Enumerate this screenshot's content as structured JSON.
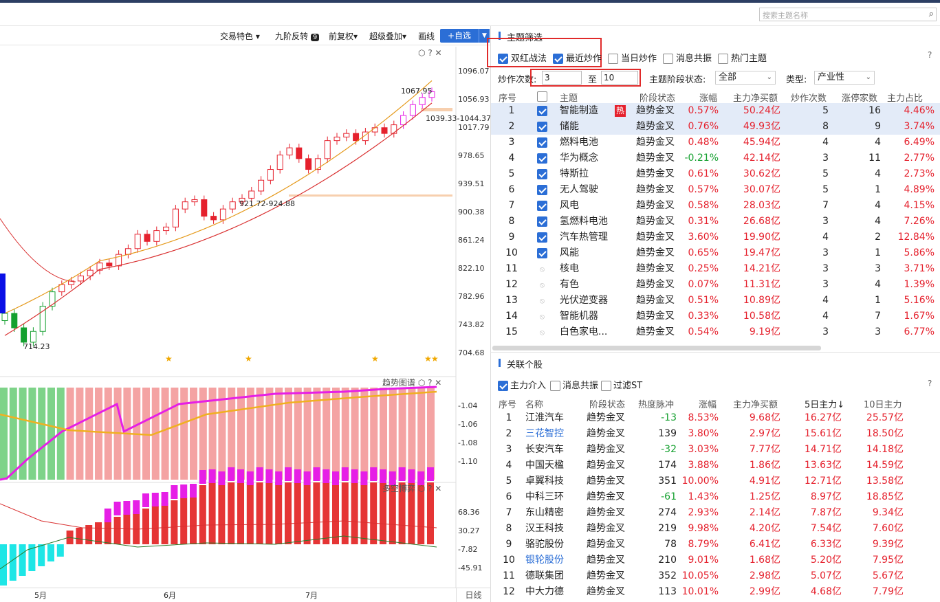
{
  "search": {
    "placeholder": "搜索主题名称",
    "icon": "search-icon"
  },
  "toolbar": {
    "items": [
      "交易特色",
      "九阶反转",
      "前复权",
      "超级叠加",
      "画线"
    ],
    "dropdown_marks": [
      "▼",
      "",
      "▼",
      "▼",
      ""
    ],
    "nine_badge": "9",
    "add_watch": "+自选"
  },
  "chart": {
    "price_ticks": [
      "1096.07",
      "1056.93",
      "1017.79",
      "978.65",
      "939.51",
      "900.38",
      "861.24",
      "822.10",
      "782.96",
      "743.82",
      "704.68"
    ],
    "annotations": {
      "high": "1067.95",
      "range1": "1039.33-1044.37",
      "range2": "921.72-924.88",
      "low": "714.23"
    },
    "trend_title": "趋势图谱",
    "trend_ticks": [
      "-1.04",
      "-1.06",
      "-1.08",
      "-1.10"
    ],
    "bull_title": "多空博弈",
    "bull_ticks": [
      "68.36",
      "30.27",
      "-7.82",
      "-45.91"
    ],
    "months": [
      "5月",
      "6月",
      "7月"
    ],
    "period": "日线"
  },
  "themes": {
    "title": "主题筛选",
    "filters": [
      {
        "label": "双红战法",
        "checked": true
      },
      {
        "label": "最近炒作",
        "checked": true
      },
      {
        "label": "当日炒作",
        "checked": false
      },
      {
        "label": "消息共振",
        "checked": false
      },
      {
        "label": "热门主题",
        "checked": false
      }
    ],
    "count_label": "炒作次数:",
    "count_from": "3",
    "count_to_label": "至",
    "count_to": "10",
    "stage_label": "主题阶段状态:",
    "stage_value": "全部",
    "type_label": "类型:",
    "type_value": "产业性",
    "columns": [
      "序号",
      "主题",
      "阶段状态",
      "涨幅",
      "主力净买额",
      "炒作次数",
      "涨停家数",
      "主力占比"
    ],
    "hot_badge": "热",
    "rows": [
      [
        "1",
        "智能制造",
        "趋势金叉",
        "0.57%",
        "50.24亿",
        "5",
        "16",
        "4.46%"
      ],
      [
        "2",
        "储能",
        "趋势金叉",
        "0.76%",
        "49.93亿",
        "8",
        "9",
        "3.74%"
      ],
      [
        "3",
        "燃料电池",
        "趋势金叉",
        "0.48%",
        "45.94亿",
        "4",
        "4",
        "6.49%"
      ],
      [
        "4",
        "华为概念",
        "趋势金叉",
        "-0.21%",
        "42.14亿",
        "3",
        "11",
        "2.77%"
      ],
      [
        "5",
        "特斯拉",
        "趋势金叉",
        "0.61%",
        "30.62亿",
        "5",
        "4",
        "2.73%"
      ],
      [
        "6",
        "无人驾驶",
        "趋势金叉",
        "0.57%",
        "30.07亿",
        "5",
        "1",
        "4.89%"
      ],
      [
        "7",
        "风电",
        "趋势金叉",
        "0.58%",
        "28.03亿",
        "7",
        "4",
        "4.15%"
      ],
      [
        "8",
        "氢燃料电池",
        "趋势金叉",
        "0.31%",
        "26.68亿",
        "3",
        "4",
        "7.26%"
      ],
      [
        "9",
        "汽车热管理",
        "趋势金叉",
        "3.60%",
        "19.90亿",
        "4",
        "2",
        "12.84%"
      ],
      [
        "10",
        "风能",
        "趋势金叉",
        "0.65%",
        "19.47亿",
        "3",
        "1",
        "5.86%"
      ],
      [
        "11",
        "核电",
        "趋势金叉",
        "0.25%",
        "14.21亿",
        "3",
        "3",
        "3.71%"
      ],
      [
        "12",
        "有色",
        "趋势金叉",
        "0.07%",
        "11.31亿",
        "3",
        "4",
        "1.39%"
      ],
      [
        "13",
        "光伏逆变器",
        "趋势金叉",
        "0.51%",
        "10.89亿",
        "4",
        "1",
        "5.16%"
      ],
      [
        "14",
        "智能机器",
        "趋势金叉",
        "0.33%",
        "10.58亿",
        "4",
        "7",
        "1.67%"
      ],
      [
        "15",
        "白色家电...",
        "趋势金叉",
        "0.54%",
        "9.19亿",
        "3",
        "3",
        "6.77%"
      ]
    ]
  },
  "stocks": {
    "title": "关联个股",
    "filters": [
      {
        "label": "主力介入",
        "checked": true
      },
      {
        "label": "消息共振",
        "checked": false
      },
      {
        "label": "过滤ST",
        "checked": false
      }
    ],
    "columns": [
      "序号",
      "名称",
      "阶段状态",
      "热度脉冲",
      "涨幅",
      "主力净买额",
      "5日主力↓",
      "10日主力"
    ],
    "rows": [
      [
        "1",
        "江淮汽车",
        "趋势金叉",
        "-13",
        "8.53%",
        "9.68亿",
        "16.27亿",
        "25.57亿"
      ],
      [
        "2",
        "三花智控",
        "趋势金叉",
        "139",
        "3.80%",
        "2.97亿",
        "15.61亿",
        "18.50亿"
      ],
      [
        "3",
        "长安汽车",
        "趋势金叉",
        "-32",
        "3.03%",
        "7.77亿",
        "14.71亿",
        "14.18亿"
      ],
      [
        "4",
        "中国天楹",
        "趋势金叉",
        "174",
        "3.88%",
        "1.86亿",
        "13.63亿",
        "14.59亿"
      ],
      [
        "5",
        "卓翼科技",
        "趋势金叉",
        "351",
        "10.00%",
        "4.91亿",
        "12.71亿",
        "13.58亿"
      ],
      [
        "6",
        "中科三环",
        "趋势金叉",
        "-61",
        "1.43%",
        "1.25亿",
        "8.97亿",
        "18.85亿"
      ],
      [
        "7",
        "东山精密",
        "趋势金叉",
        "274",
        "2.93%",
        "2.14亿",
        "7.87亿",
        "9.34亿"
      ],
      [
        "8",
        "汉王科技",
        "趋势金叉",
        "219",
        "9.98%",
        "4.20亿",
        "7.54亿",
        "7.60亿"
      ],
      [
        "9",
        "骆驼股份",
        "趋势金叉",
        "78",
        "8.79%",
        "6.41亿",
        "6.33亿",
        "9.39亿"
      ],
      [
        "10",
        "银轮股份",
        "趋势金叉",
        "210",
        "9.01%",
        "1.68亿",
        "5.20亿",
        "7.95亿"
      ],
      [
        "11",
        "德联集团",
        "趋势金叉",
        "352",
        "10.05%",
        "2.98亿",
        "5.07亿",
        "5.67亿"
      ],
      [
        "12",
        "中大力德",
        "趋势金叉",
        "113",
        "10.01%",
        "2.99亿",
        "4.68亿",
        "7.79亿"
      ]
    ],
    "blue_names": [
      "三花智控",
      "银轮股份"
    ]
  },
  "colors": {
    "up": "#e5212d",
    "down": "#14a02f",
    "accent": "#2b6ed6",
    "ma_orange": "#e59a1c",
    "ma_red": "#d93030",
    "magenta": "#e61ee6"
  }
}
